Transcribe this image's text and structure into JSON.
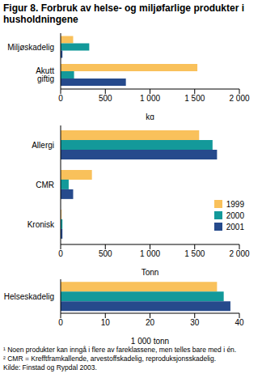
{
  "title": "Figur 8. Forbruk av helse- og miljøfarlige produkter i husholdningene",
  "notes": [
    "¹ Noen produkter kan inngå i flere av fareklassene, men telles bare med i én.",
    "² CMR = Krefftframkallende, arvestoffskadelig, reproduksjonsskadelig.",
    "Kilde: Finstad og Rypdal 2003."
  ],
  "chart_data": [
    {
      "type": "bar",
      "orientation": "horizontal",
      "grid": false,
      "x_label": "kg",
      "categories": [
        "Miljøskadelig",
        "Akutt giftig"
      ],
      "series": [
        {
          "name": "1999",
          "color": "#f9c15b",
          "values": [
            140,
            1530
          ]
        },
        {
          "name": "2000",
          "color": "#13999a",
          "values": [
            320,
            150
          ]
        },
        {
          "name": "2001",
          "color": "#264a8c",
          "values": [
            20,
            730
          ]
        }
      ],
      "xlim": [
        0,
        2000
      ],
      "xticks": [
        0,
        500,
        {
          "value": 1000,
          "label": "1 000"
        },
        {
          "value": 1500,
          "label": "1 500"
        },
        {
          "value": 2000,
          "label": "2 000"
        }
      ]
    },
    {
      "type": "bar",
      "orientation": "horizontal",
      "grid": false,
      "legend": "right",
      "x_label": "Tonn",
      "categories": [
        "Allergi",
        "CMR",
        "Kronisk"
      ],
      "series": [
        {
          "name": "1999",
          "color": "#f9c15b",
          "values": [
            1550,
            350,
            10
          ]
        },
        {
          "name": "2000",
          "color": "#13999a",
          "values": [
            1700,
            90,
            20
          ]
        },
        {
          "name": "2001",
          "color": "#264a8c",
          "values": [
            1750,
            140,
            20
          ]
        }
      ],
      "xlim": [
        0,
        2000
      ],
      "xticks": [
        0,
        500,
        {
          "value": 1000,
          "label": "1 000"
        },
        {
          "value": 1500,
          "label": "1 500"
        },
        {
          "value": 2000,
          "label": "2 000"
        }
      ]
    },
    {
      "type": "bar",
      "orientation": "horizontal",
      "grid": false,
      "x_label": "1 000 tonn",
      "categories": [
        "Helseskadelig"
      ],
      "series": [
        {
          "name": "1999",
          "color": "#f9c15b",
          "values": [
            35
          ]
        },
        {
          "name": "2000",
          "color": "#13999a",
          "values": [
            36.5
          ]
        },
        {
          "name": "2001",
          "color": "#264a8c",
          "values": [
            38
          ]
        }
      ],
      "xlim": [
        0,
        40
      ],
      "xticks": [
        0,
        10,
        20,
        30,
        40
      ]
    }
  ]
}
